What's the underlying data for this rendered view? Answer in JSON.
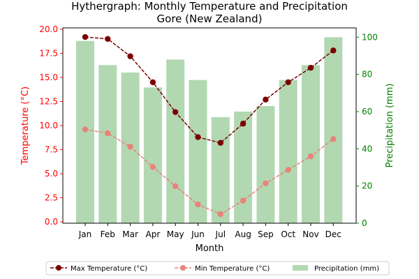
{
  "chart_data": {
    "type": "bar+line",
    "title_line1": "Hythergraph: Monthly Temperature and Precipitation",
    "title_line2": "Gore (New Zealand)",
    "xlabel": "Month",
    "ylabel_left": "Temperature (°C)",
    "ylabel_right": "Precipitation (mm)",
    "categories": [
      "Jan",
      "Feb",
      "Mar",
      "Apr",
      "May",
      "Jun",
      "Jul",
      "Aug",
      "Sep",
      "Oct",
      "Nov",
      "Dec"
    ],
    "y_left_lim": [
      0,
      20
    ],
    "y_left_ticks": [
      "0.0",
      "2.5",
      "5.0",
      "7.5",
      "10.0",
      "12.5",
      "15.0",
      "17.5",
      "20.0"
    ],
    "y_right_lim": [
      0,
      105
    ],
    "y_right_ticks": [
      "0",
      "20",
      "40",
      "60",
      "80",
      "100"
    ],
    "series": [
      {
        "name": "Max Temperature (°C)",
        "axis": "left",
        "kind": "line",
        "color": "#7b0000",
        "values": [
          19.2,
          19.0,
          17.2,
          14.5,
          11.4,
          8.8,
          8.2,
          10.2,
          12.7,
          14.5,
          16.0,
          17.8
        ]
      },
      {
        "name": "Min Temperature (°C)",
        "axis": "left",
        "kind": "line",
        "color": "#e8837a",
        "values": [
          9.6,
          9.2,
          7.8,
          5.7,
          3.7,
          1.8,
          0.8,
          2.2,
          4.0,
          5.4,
          6.8,
          8.6
        ]
      },
      {
        "name": "Precipitation (mm)",
        "axis": "right",
        "kind": "bar",
        "color": "#b2d8b2",
        "values": [
          98,
          85,
          81,
          73,
          88,
          77,
          57,
          60,
          63,
          77,
          85,
          100
        ]
      }
    ],
    "legend_position": "bottom-center",
    "grid": false,
    "colors": {
      "left_axis": "#ff0000",
      "right_axis": "#008000"
    }
  }
}
